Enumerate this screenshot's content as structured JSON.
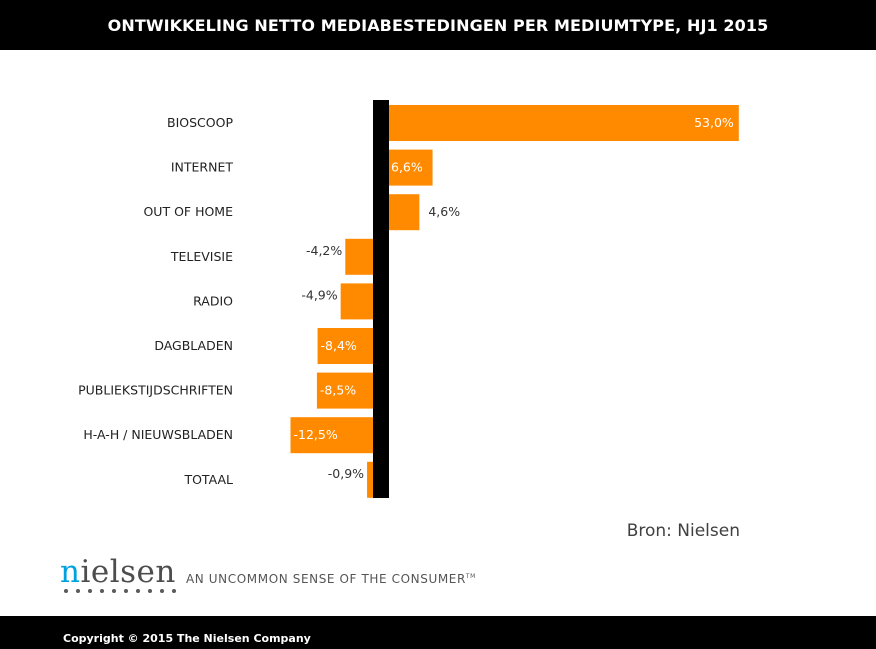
{
  "title": "ONTWIKKELING NETTO MEDIABESTEDINGEN PER MEDIUMTYPE, HJ1 2015",
  "source": "Bron: Nielsen",
  "logo": {
    "word": "nielsen",
    "tagline": "AN UNCOMMON SENSE OF THE CONSUMER",
    "tagline_mark": "TM"
  },
  "footer": {
    "copyright": "Copyright © 2015 The Nielsen Company"
  },
  "colors": {
    "bar": "#ff8a00",
    "axis": "#000000",
    "header_bg": "#000000",
    "logo_accent": "#00a1df"
  },
  "chart_data": {
    "type": "bar",
    "orientation": "horizontal",
    "categories": [
      "BIOSCOOP",
      "INTERNET",
      "OUT OF HOME",
      "TELEVISIE",
      "RADIO",
      "DAGBLADEN",
      "PUBLIEKSTIJDSCHRIFTEN",
      "H-A-H / NIEUWSBLADEN",
      "TOTAAL"
    ],
    "values": [
      53.0,
      6.6,
      4.6,
      -4.2,
      -4.9,
      -8.4,
      -8.5,
      -12.5,
      -0.9
    ],
    "data_labels": [
      "53,0%",
      "6,6%",
      "4,6%",
      "-4,2%",
      "-4,9%",
      "-8,4%",
      "-8,5%",
      "-12,5%",
      "-0,9%"
    ],
    "title": "ONTWIKKELING NETTO MEDIABESTEDINGEN PER MEDIUMTYPE, HJ1 2015",
    "xlabel": "",
    "ylabel": "",
    "xlim": [
      -13,
      55
    ],
    "grid": false,
    "legend": "none"
  }
}
